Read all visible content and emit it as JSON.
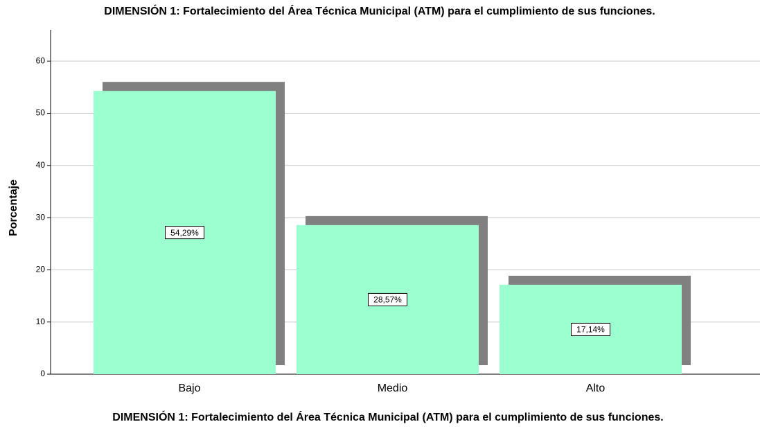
{
  "chart_data": {
    "type": "bar",
    "title": "DIMENSIÓN 1:  Fortalecimiento del Área Técnica Municipal (ATM) para el cumplimiento de sus funciones.",
    "x_label": "DIMENSIÓN 1:  Fortalecimiento del Área Técnica Municipal (ATM) para el cumplimiento de sus funciones.",
    "y_label": "Porcentaje",
    "categories": [
      "Bajo",
      "Medio",
      "Alto"
    ],
    "values": [
      54.29,
      28.57,
      17.14
    ],
    "value_labels": [
      "54,29%",
      "28,57%",
      "17,14%"
    ],
    "color": "#9cffcf",
    "shadow_color": "#808080",
    "ylim": [
      0,
      66
    ],
    "yticks": [
      0,
      10,
      20,
      30,
      40,
      50,
      60
    ],
    "grid": true
  }
}
